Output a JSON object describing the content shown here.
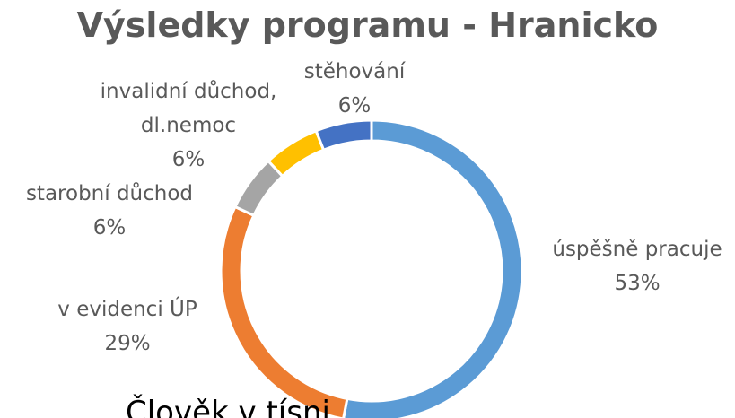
{
  "chart_data": {
    "type": "doughnut",
    "title": "Výsledky programu - Hranicko",
    "categories": [
      "úspěšně pracuje",
      "v evidenci ÚP",
      "starobní důchod",
      "invalidní důchod, dl.nemoc",
      "stěhování"
    ],
    "values": [
      53,
      29,
      6,
      6,
      6
    ],
    "value_labels": [
      "53%",
      "29%",
      "6%",
      "6%",
      "6%"
    ],
    "colors": [
      "#5b9bd5",
      "#ed7d31",
      "#a5a5a5",
      "#ffc000",
      "#4472c4"
    ]
  },
  "footer": "Člověk v tísni"
}
